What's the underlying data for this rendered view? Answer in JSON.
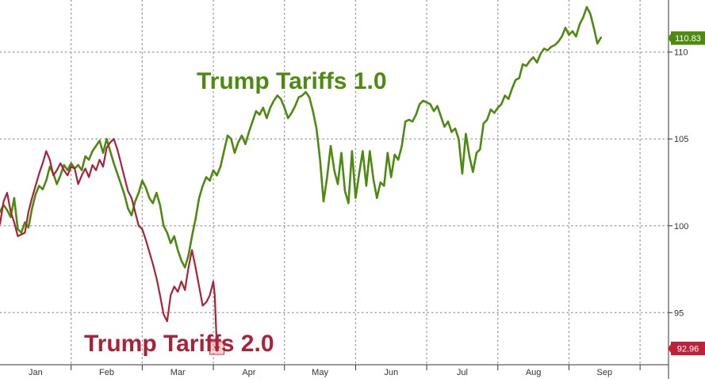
{
  "chart_data": {
    "type": "line",
    "title": "",
    "xlabel": "",
    "ylabel": "",
    "ylim": [
      92,
      113
    ],
    "xlim": [
      0,
      9.4
    ],
    "grid": true,
    "x_tick_labels": [
      "Jan",
      "Feb",
      "Mar",
      "Apr",
      "May",
      "Jun",
      "Jul",
      "Aug",
      "Sep"
    ],
    "y_ticks": [
      95,
      100,
      105,
      110
    ],
    "y_tick_labels": [
      "95",
      "100",
      "105",
      "110"
    ],
    "annotations": {
      "green": "Trump Tariffs 1.0",
      "red": "Trump Tariffs 2.0"
    },
    "last_value_labels": {
      "green": "110.83",
      "red": "92.96"
    },
    "colors": {
      "green": "#4f8a10",
      "red": "#a8233a",
      "green_label_bg": "#4f8a10",
      "red_label_bg": "#c0203a"
    },
    "series": [
      {
        "name": "Trump Tariffs 1.0",
        "points": [
          [
            0.0,
            100.8
          ],
          [
            0.05,
            101.2
          ],
          [
            0.1,
            100.9
          ],
          [
            0.15,
            100.5
          ],
          [
            0.2,
            101.6
          ],
          [
            0.25,
            99.8
          ],
          [
            0.3,
            99.6
          ],
          [
            0.35,
            100.2
          ],
          [
            0.4,
            99.9
          ],
          [
            0.45,
            101.0
          ],
          [
            0.5,
            101.8
          ],
          [
            0.55,
            102.3
          ],
          [
            0.6,
            102.1
          ],
          [
            0.65,
            102.6
          ],
          [
            0.7,
            103.4
          ],
          [
            0.75,
            103.0
          ],
          [
            0.8,
            102.4
          ],
          [
            0.85,
            102.9
          ],
          [
            0.9,
            103.5
          ],
          [
            0.95,
            103.2
          ],
          [
            1.0,
            103.6
          ],
          [
            1.05,
            103.3
          ],
          [
            1.1,
            103.5
          ],
          [
            1.15,
            103.2
          ],
          [
            1.2,
            104.0
          ],
          [
            1.25,
            103.8
          ],
          [
            1.3,
            104.3
          ],
          [
            1.35,
            104.6
          ],
          [
            1.4,
            104.9
          ],
          [
            1.45,
            104.2
          ],
          [
            1.5,
            105.0
          ],
          [
            1.55,
            104.3
          ],
          [
            1.6,
            103.6
          ],
          [
            1.65,
            103.0
          ],
          [
            1.7,
            102.4
          ],
          [
            1.75,
            101.8
          ],
          [
            1.8,
            101.0
          ],
          [
            1.85,
            100.6
          ],
          [
            1.9,
            101.4
          ],
          [
            1.95,
            101.9
          ],
          [
            2.0,
            102.6
          ],
          [
            2.05,
            102.2
          ],
          [
            2.1,
            101.6
          ],
          [
            2.15,
            101.3
          ],
          [
            2.2,
            101.9
          ],
          [
            2.25,
            101.2
          ],
          [
            2.3,
            100.0
          ],
          [
            2.35,
            99.6
          ],
          [
            2.4,
            99.0
          ],
          [
            2.45,
            99.4
          ],
          [
            2.5,
            98.6
          ],
          [
            2.55,
            98.0
          ],
          [
            2.6,
            97.6
          ],
          [
            2.65,
            98.3
          ],
          [
            2.7,
            99.4
          ],
          [
            2.75,
            100.4
          ],
          [
            2.8,
            101.6
          ],
          [
            2.85,
            102.3
          ],
          [
            2.9,
            102.8
          ],
          [
            2.95,
            102.6
          ],
          [
            3.0,
            103.2
          ],
          [
            3.05,
            102.9
          ],
          [
            3.1,
            103.4
          ],
          [
            3.15,
            104.3
          ],
          [
            3.2,
            105.2
          ],
          [
            3.25,
            105.0
          ],
          [
            3.3,
            104.2
          ],
          [
            3.35,
            104.8
          ],
          [
            3.4,
            105.2
          ],
          [
            3.45,
            104.7
          ],
          [
            3.5,
            105.4
          ],
          [
            3.55,
            106.0
          ],
          [
            3.6,
            106.6
          ],
          [
            3.65,
            106.4
          ],
          [
            3.7,
            106.8
          ],
          [
            3.75,
            106.2
          ],
          [
            3.8,
            106.8
          ],
          [
            3.85,
            107.2
          ],
          [
            3.9,
            107.5
          ],
          [
            3.95,
            107.3
          ],
          [
            4.0,
            106.8
          ],
          [
            4.05,
            106.2
          ],
          [
            4.1,
            106.5
          ],
          [
            4.15,
            106.9
          ],
          [
            4.2,
            107.4
          ],
          [
            4.25,
            107.5
          ],
          [
            4.3,
            107.7
          ],
          [
            4.35,
            107.4
          ],
          [
            4.4,
            106.6
          ],
          [
            4.45,
            105.6
          ],
          [
            4.5,
            103.8
          ],
          [
            4.55,
            101.4
          ],
          [
            4.6,
            102.8
          ],
          [
            4.65,
            104.6
          ],
          [
            4.7,
            103.2
          ],
          [
            4.75,
            102.4
          ],
          [
            4.8,
            104.2
          ],
          [
            4.85,
            102.0
          ],
          [
            4.9,
            101.3
          ],
          [
            4.95,
            104.3
          ],
          [
            5.0,
            101.6
          ],
          [
            5.05,
            103.0
          ],
          [
            5.1,
            104.3
          ],
          [
            5.15,
            102.3
          ],
          [
            5.2,
            104.3
          ],
          [
            5.25,
            102.7
          ],
          [
            5.3,
            101.6
          ],
          [
            5.35,
            102.5
          ],
          [
            5.4,
            102.3
          ],
          [
            5.45,
            104.2
          ],
          [
            5.5,
            102.8
          ],
          [
            5.55,
            104.1
          ],
          [
            5.6,
            103.8
          ],
          [
            5.65,
            104.6
          ],
          [
            5.7,
            106.0
          ],
          [
            5.75,
            106.1
          ],
          [
            5.8,
            106.0
          ],
          [
            5.85,
            106.4
          ],
          [
            5.9,
            107.0
          ],
          [
            5.95,
            107.2
          ],
          [
            6.0,
            107.1
          ],
          [
            6.05,
            107.0
          ],
          [
            6.1,
            106.6
          ],
          [
            6.15,
            106.9
          ],
          [
            6.2,
            106.3
          ],
          [
            6.25,
            105.7
          ],
          [
            6.3,
            106.0
          ],
          [
            6.35,
            105.4
          ],
          [
            6.4,
            105.6
          ],
          [
            6.45,
            105.0
          ],
          [
            6.5,
            103.0
          ],
          [
            6.55,
            105.3
          ],
          [
            6.6,
            104.0
          ],
          [
            6.65,
            103.1
          ],
          [
            6.7,
            104.2
          ],
          [
            6.75,
            104.4
          ],
          [
            6.8,
            105.9
          ],
          [
            6.85,
            106.1
          ],
          [
            6.9,
            106.7
          ],
          [
            6.95,
            106.5
          ],
          [
            7.0,
            106.8
          ],
          [
            7.05,
            107.0
          ],
          [
            7.1,
            107.5
          ],
          [
            7.15,
            107.3
          ],
          [
            7.2,
            107.9
          ],
          [
            7.25,
            108.4
          ],
          [
            7.3,
            108.5
          ],
          [
            7.35,
            109.3
          ],
          [
            7.4,
            109.2
          ],
          [
            7.45,
            109.5
          ],
          [
            7.5,
            109.7
          ],
          [
            7.55,
            109.4
          ],
          [
            7.6,
            109.9
          ],
          [
            7.65,
            110.2
          ],
          [
            7.7,
            110.1
          ],
          [
            7.75,
            110.3
          ],
          [
            7.8,
            110.4
          ],
          [
            7.85,
            110.6
          ],
          [
            7.9,
            110.9
          ],
          [
            7.95,
            111.4
          ],
          [
            8.0,
            111.0
          ],
          [
            8.05,
            111.2
          ],
          [
            8.1,
            110.9
          ],
          [
            8.15,
            111.6
          ],
          [
            8.2,
            112.0
          ],
          [
            8.25,
            112.6
          ],
          [
            8.3,
            112.2
          ],
          [
            8.35,
            111.4
          ],
          [
            8.4,
            110.5
          ],
          [
            8.45,
            110.83
          ]
        ]
      },
      {
        "name": "Trump Tariffs 2.0",
        "points": [
          [
            0.0,
            100.1
          ],
          [
            0.05,
            101.4
          ],
          [
            0.1,
            101.9
          ],
          [
            0.15,
            100.8
          ],
          [
            0.2,
            100.2
          ],
          [
            0.25,
            99.4
          ],
          [
            0.3,
            99.5
          ],
          [
            0.35,
            99.6
          ],
          [
            0.4,
            100.8
          ],
          [
            0.45,
            101.6
          ],
          [
            0.5,
            102.3
          ],
          [
            0.55,
            103.0
          ],
          [
            0.6,
            103.6
          ],
          [
            0.65,
            104.3
          ],
          [
            0.7,
            103.8
          ],
          [
            0.75,
            102.9
          ],
          [
            0.8,
            103.2
          ],
          [
            0.85,
            103.6
          ],
          [
            0.9,
            103.2
          ],
          [
            0.95,
            102.9
          ],
          [
            1.0,
            103.4
          ],
          [
            1.05,
            103.3
          ],
          [
            1.1,
            102.4
          ],
          [
            1.15,
            102.9
          ],
          [
            1.2,
            103.3
          ],
          [
            1.25,
            102.8
          ],
          [
            1.3,
            103.5
          ],
          [
            1.35,
            103.2
          ],
          [
            1.4,
            103.8
          ],
          [
            1.45,
            103.4
          ],
          [
            1.5,
            104.5
          ],
          [
            1.55,
            104.8
          ],
          [
            1.6,
            105.0
          ],
          [
            1.65,
            104.4
          ],
          [
            1.7,
            103.6
          ],
          [
            1.75,
            102.8
          ],
          [
            1.8,
            102.0
          ],
          [
            1.85,
            101.6
          ],
          [
            1.9,
            100.8
          ],
          [
            1.95,
            100.0
          ],
          [
            2.0,
            99.8
          ],
          [
            2.05,
            99.2
          ],
          [
            2.1,
            98.5
          ],
          [
            2.15,
            97.8
          ],
          [
            2.2,
            97.0
          ],
          [
            2.25,
            96.0
          ],
          [
            2.3,
            94.9
          ],
          [
            2.35,
            94.5
          ],
          [
            2.4,
            96.0
          ],
          [
            2.45,
            96.5
          ],
          [
            2.5,
            96.2
          ],
          [
            2.55,
            96.8
          ],
          [
            2.6,
            96.3
          ],
          [
            2.65,
            97.6
          ],
          [
            2.7,
            98.6
          ],
          [
            2.75,
            97.6
          ],
          [
            2.8,
            96.5
          ],
          [
            2.85,
            95.4
          ],
          [
            2.9,
            95.6
          ],
          [
            2.95,
            96.0
          ],
          [
            3.0,
            96.8
          ],
          [
            3.02,
            96.0
          ],
          [
            3.05,
            92.96
          ]
        ]
      }
    ]
  }
}
